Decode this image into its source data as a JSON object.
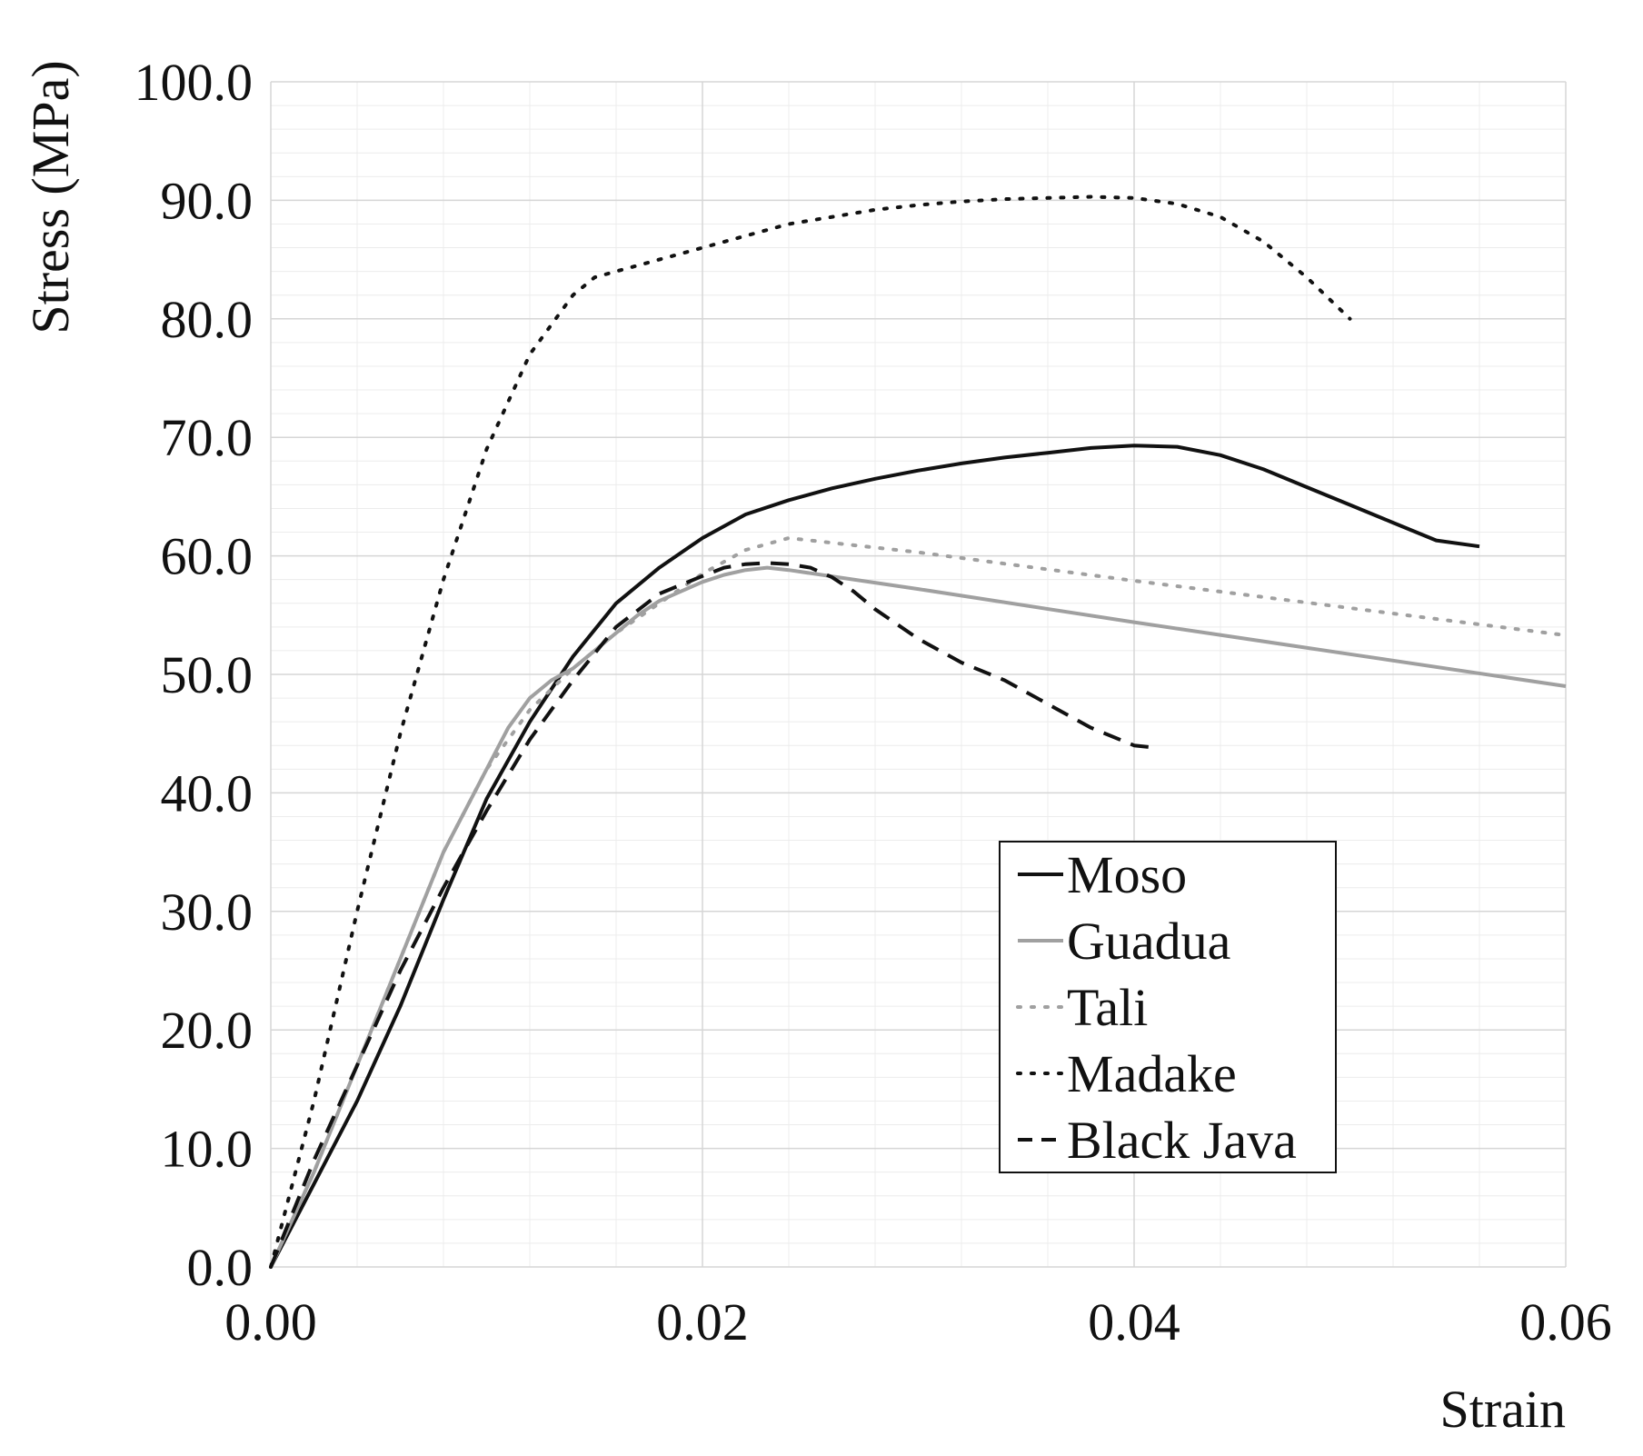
{
  "chart_data": {
    "type": "line",
    "title": "",
    "xlabel": "Strain",
    "ylabel": "Stress (MPa)",
    "xlim": [
      0,
      0.06
    ],
    "ylim": [
      0,
      100
    ],
    "x_ticks": [
      0,
      0.02,
      0.04,
      0.06
    ],
    "x_tick_labels": [
      "0.00",
      "0.02",
      "0.04",
      "0.06"
    ],
    "y_ticks": [
      0,
      10,
      20,
      30,
      40,
      50,
      60,
      70,
      80,
      90,
      100
    ],
    "y_tick_labels": [
      "0.0",
      "10.0",
      "20.0",
      "30.0",
      "40.0",
      "50.0",
      "60.0",
      "70.0",
      "80.0",
      "90.0",
      "100.0"
    ],
    "grid": true,
    "minor_grid": true,
    "legend_position": "lower-right",
    "series": [
      {
        "name": "Moso",
        "color": "#111111",
        "style": "solid",
        "x": [
          0,
          0.002,
          0.004,
          0.006,
          0.008,
          0.01,
          0.012,
          0.014,
          0.016,
          0.018,
          0.02,
          0.022,
          0.024,
          0.026,
          0.028,
          0.03,
          0.032,
          0.034,
          0.036,
          0.038,
          0.04,
          0.042,
          0.044,
          0.046,
          0.048,
          0.05,
          0.052,
          0.054,
          0.056
        ],
        "y": [
          0,
          7,
          14,
          22,
          31,
          39.5,
          46,
          51.5,
          56,
          59,
          61.5,
          63.5,
          64.7,
          65.7,
          66.5,
          67.2,
          67.8,
          68.3,
          68.7,
          69.1,
          69.3,
          69.2,
          68.5,
          67.3,
          65.8,
          64.3,
          62.8,
          61.3,
          60.8
        ]
      },
      {
        "name": "Guadua",
        "color": "#a0a0a0",
        "style": "solid",
        "x": [
          0,
          0.002,
          0.004,
          0.006,
          0.008,
          0.01,
          0.011,
          0.012,
          0.013,
          0.014,
          0.015,
          0.016,
          0.017,
          0.018,
          0.019,
          0.02,
          0.021,
          0.022,
          0.023,
          0.024,
          0.03,
          0.04,
          0.05,
          0.06
        ],
        "y": [
          0,
          8,
          17,
          26,
          35,
          42,
          45.5,
          48,
          49.5,
          50.5,
          52,
          53.5,
          55,
          56.2,
          57,
          57.8,
          58.4,
          58.8,
          59,
          58.8,
          57.2,
          54.4,
          51.7,
          49
        ]
      },
      {
        "name": "Tali",
        "color": "#a0a0a0",
        "style": "dotted",
        "x": [
          0,
          0.002,
          0.004,
          0.006,
          0.008,
          0.01,
          0.012,
          0.014,
          0.016,
          0.018,
          0.02,
          0.022,
          0.024,
          0.03,
          0.04,
          0.05,
          0.06
        ],
        "y": [
          0,
          8,
          17,
          26,
          35,
          42,
          47,
          50.5,
          53.5,
          56,
          58.5,
          60.5,
          61.5,
          60.3,
          57.9,
          55.6,
          53.3
        ]
      },
      {
        "name": "Madake",
        "color": "#111111",
        "style": "dotted",
        "x": [
          0,
          0.002,
          0.004,
          0.006,
          0.008,
          0.01,
          0.012,
          0.014,
          0.015,
          0.016,
          0.018,
          0.02,
          0.022,
          0.024,
          0.026,
          0.028,
          0.03,
          0.032,
          0.034,
          0.036,
          0.038,
          0.04,
          0.042,
          0.044,
          0.046,
          0.048,
          0.05
        ],
        "y": [
          0,
          14,
          30,
          45,
          58,
          69,
          77,
          82,
          83.5,
          84,
          85,
          86,
          87,
          88,
          88.6,
          89.2,
          89.6,
          89.9,
          90.1,
          90.2,
          90.3,
          90.2,
          89.7,
          88.6,
          86.5,
          83.5,
          80
        ]
      },
      {
        "name": "Black Java",
        "color": "#111111",
        "style": "dashed",
        "x": [
          0,
          0.002,
          0.004,
          0.006,
          0.008,
          0.01,
          0.012,
          0.014,
          0.016,
          0.018,
          0.02,
          0.021,
          0.022,
          0.023,
          0.024,
          0.025,
          0.026,
          0.027,
          0.028,
          0.03,
          0.032,
          0.034,
          0.036,
          0.038,
          0.04,
          0.041
        ],
        "y": [
          0,
          9,
          17,
          25,
          32,
          38.5,
          44.5,
          49.5,
          54,
          56.8,
          58.3,
          59,
          59.3,
          59.4,
          59.3,
          59,
          58.2,
          57,
          55.5,
          53,
          51,
          49.5,
          47.5,
          45.5,
          44,
          43.8
        ]
      }
    ]
  }
}
